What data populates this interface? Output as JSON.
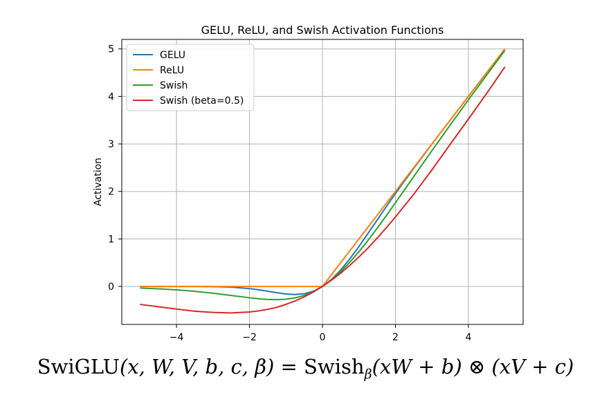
{
  "chart_data": {
    "type": "line",
    "title": "GELU, ReLU, and Swish Activation Functions",
    "xlabel": "",
    "ylabel": "Activation",
    "xlim": [
      -5.5,
      5.5
    ],
    "ylim": [
      -0.8,
      5.2
    ],
    "xticks": [
      -4,
      -2,
      0,
      2,
      4
    ],
    "xtick_labels": [
      "−4",
      "−2",
      "0",
      "2",
      "4"
    ],
    "yticks": [
      0,
      1,
      2,
      3,
      4,
      5
    ],
    "ytick_labels": [
      "0",
      "1",
      "2",
      "3",
      "4",
      "5"
    ],
    "grid": true,
    "legend_position": "top-left",
    "x": [
      -5,
      -4.5,
      -4,
      -3.5,
      -3,
      -2.5,
      -2,
      -1.75,
      -1.5,
      -1.25,
      -1,
      -0.75,
      -0.5,
      -0.25,
      0,
      0.25,
      0.5,
      0.75,
      1,
      1.25,
      1.5,
      1.75,
      2,
      2.5,
      3,
      3.5,
      4,
      4.5,
      5
    ],
    "series": [
      {
        "name": "GELU",
        "color": "#1f77b4",
        "values": [
          0,
          0,
          -0.0001,
          -0.0008,
          -0.004,
          -0.0155,
          -0.0455,
          -0.0702,
          -0.1002,
          -0.132,
          -0.1587,
          -0.17,
          -0.1543,
          -0.1003,
          0,
          0.1497,
          0.3457,
          0.58,
          0.8413,
          1.118,
          1.3998,
          1.6798,
          1.9545,
          2.4845,
          2.996,
          3.4992,
          3.9999,
          4.5,
          5.0
        ]
      },
      {
        "name": "ReLU",
        "color": "#ff7f0e",
        "values": [
          0,
          0,
          0,
          0,
          0,
          0,
          0,
          0,
          0,
          0,
          0,
          0,
          0,
          0,
          0,
          0.25,
          0.5,
          0.75,
          1,
          1.25,
          1.5,
          1.75,
          2,
          2.5,
          3,
          3.5,
          4,
          4.5,
          5
        ]
      },
      {
        "name": "Swish",
        "color": "#2ca02c",
        "values": [
          -0.0335,
          -0.0495,
          -0.0719,
          -0.1033,
          -0.1423,
          -0.1896,
          -0.2384,
          -0.2601,
          -0.2736,
          -0.278,
          -0.2689,
          -0.2407,
          -0.1888,
          -0.1097,
          0,
          0.1403,
          0.3112,
          0.5093,
          0.7311,
          0.972,
          1.2264,
          1.4899,
          1.7616,
          2.3104,
          2.8577,
          3.3971,
          3.9281,
          4.4502,
          4.9665
        ]
      },
      {
        "name": "Swish (beta=0.5)",
        "color": "#d62728",
        "values": [
          -0.3785,
          -0.4275,
          -0.4768,
          -0.5216,
          -0.5467,
          -0.5584,
          -0.5379,
          -0.515,
          -0.4823,
          -0.4394,
          -0.3775,
          -0.3055,
          -0.2193,
          -0.1172,
          0,
          0.1328,
          0.2807,
          0.4434,
          0.6225,
          0.8106,
          1.0177,
          1.235,
          1.4621,
          1.9388,
          2.4529,
          2.9905,
          3.5232,
          4.0635,
          4.6215
        ]
      }
    ]
  },
  "formula": {
    "lhs_name": "SwiGLU",
    "lhs_args": "(x, W, V, b, c, β)",
    "equals": "=",
    "rhs_func": "Swish",
    "rhs_sub": "β",
    "rhs_arg1": "(xW + b)",
    "otimes": "⊗",
    "rhs_arg2": "(xV + c)"
  }
}
